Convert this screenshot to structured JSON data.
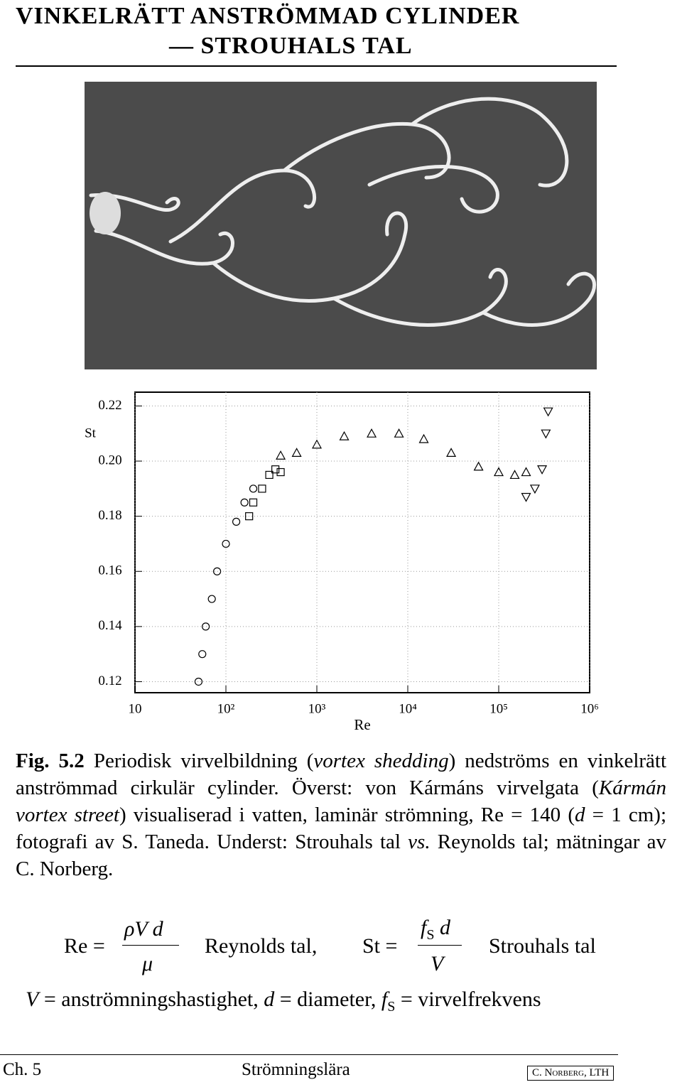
{
  "header": {
    "title": [
      "VINKELRÄTT ANSTRÖMMAD CYLINDER",
      "— STROUHALS TAL"
    ]
  },
  "chart_data": {
    "type": "scatter",
    "x_label": "Re",
    "y_label": "St",
    "log_x": true,
    "grid": true,
    "color": "#000000",
    "xlim": [
      10,
      1000000
    ],
    "ylim": [
      0.116,
      0.225
    ],
    "xticks": [
      10,
      {
        "value": 100,
        "label": "10²"
      },
      {
        "value": 1000,
        "label": "10³"
      },
      {
        "value": 10000,
        "label": "10⁴"
      },
      {
        "value": 100000,
        "label": "10⁵"
      },
      {
        "value": 1000000,
        "label": "10⁶"
      }
    ],
    "yticks": [
      0.12,
      0.14,
      0.16,
      0.18,
      {
        "value": 0.2,
        "label": "0.20"
      },
      0.22
    ],
    "series": [
      {
        "marker": "circle",
        "x": [
          50,
          55,
          60,
          70,
          80,
          100,
          130,
          160,
          200
        ],
        "values": [
          0.12,
          0.13,
          0.14,
          0.15,
          0.16,
          0.17,
          0.178,
          0.185,
          0.19
        ]
      },
      {
        "marker": "square",
        "x": [
          180,
          200,
          250,
          300,
          350,
          400
        ],
        "values": [
          0.18,
          0.185,
          0.19,
          0.195,
          0.197,
          0.196
        ]
      },
      {
        "marker": "triangle",
        "x": [
          400,
          600,
          1000,
          2000,
          4000,
          8000,
          15000,
          30000,
          60000,
          100000,
          150000,
          200000
        ],
        "values": [
          0.202,
          0.203,
          0.206,
          0.209,
          0.21,
          0.21,
          0.208,
          0.203,
          0.198,
          0.196,
          0.195,
          0.196
        ]
      },
      {
        "marker": "triangle-down",
        "x": [
          200000,
          250000,
          300000,
          330000,
          350000
        ],
        "values": [
          0.187,
          0.19,
          0.197,
          0.21,
          0.218
        ]
      }
    ]
  },
  "caption": [
    "Fig. 5.2",
    " Periodisk virvelbildning (",
    "vortex shedding",
    ") nedströms en vinkelrätt anströmmad cirkulär cylinder. Överst: von Kármáns virvelgata (",
    "Kármán vortex street",
    ") visualiserad i vatten, laminär strömning, Re = 140 (",
    "d",
    " = 1 cm); fotografi av S. Taneda. Underst: Strouhals tal ",
    "vs.",
    " Reynolds tal; mätningar av C. Norberg."
  ],
  "formulas": {
    "re_lhs": "Re =",
    "re_num": "ρV d",
    "re_den": "μ",
    "re_name": "Reynolds tal,",
    "st_lhs": "St =",
    "st_num_f": "f",
    "st_num_sub": "S",
    "st_num_d": " d",
    "st_den": "V",
    "st_name": "Strouhals tal"
  },
  "definitions": [
    "V",
    " = anströmningshastighet, ",
    "d",
    " = diameter, ",
    "f",
    "S",
    " = virvelfrekvens"
  ],
  "footer": {
    "chapter": "Ch. 5",
    "book": "Strömningslära",
    "author": "C. Norberg, LTH"
  }
}
